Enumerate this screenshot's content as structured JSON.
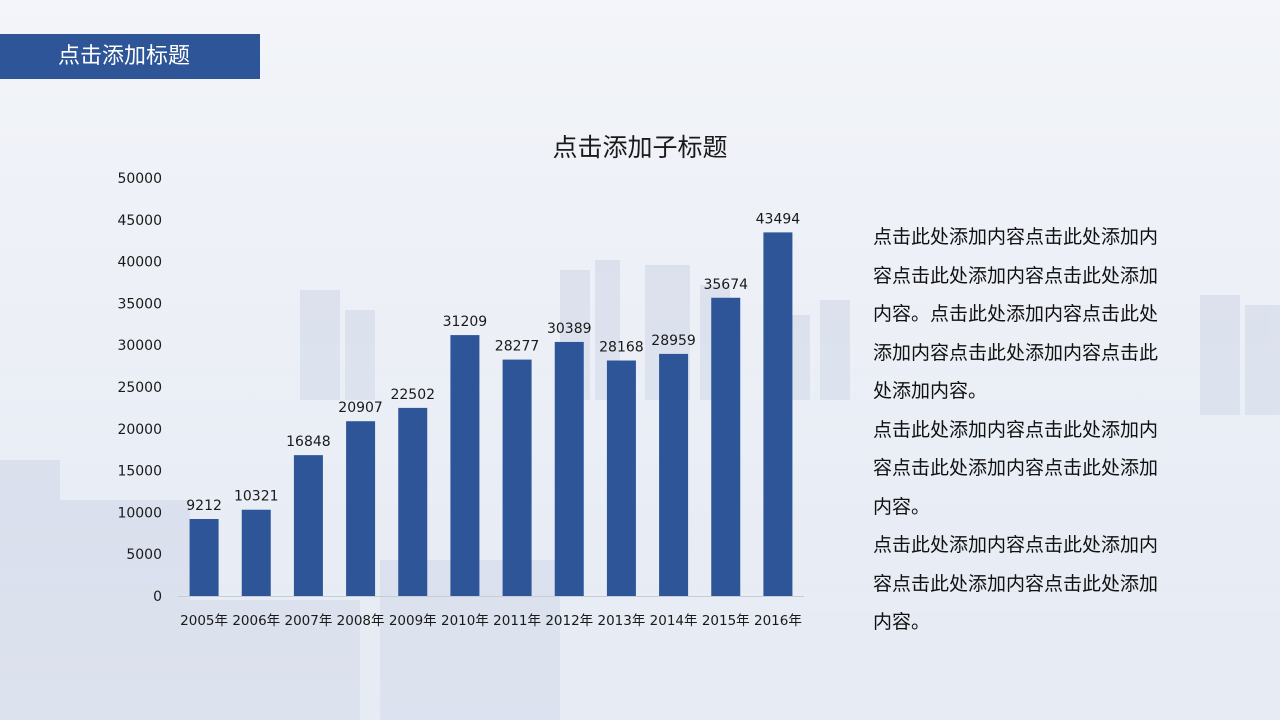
{
  "slide": {
    "title": "点击添加标题",
    "subtitle": "点击添加子标题",
    "paragraphs": [
      "点击此处添加内容点击此处添加内容点击此处添加内容点击此处添加内容。点击此处添加内容点击此处添加内容点击此处添加内容点击此处添加内容。",
      "点击此处添加内容点击此处添加内容点击此处添加内容点击此处添加内容。",
      "点击此处添加内容点击此处添加内容点击此处添加内容点击此处添加内容。"
    ]
  },
  "colors": {
    "bar": "#2d5597",
    "banner": "#2d5597",
    "axis": "#c8ccd4",
    "text": "#1a1a1a"
  },
  "chart_data": {
    "type": "bar",
    "categories": [
      "2005年",
      "2006年",
      "2007年",
      "2008年",
      "2009年",
      "2010年",
      "2011年",
      "2012年",
      "2013年",
      "2014年",
      "2015年",
      "2016年"
    ],
    "values": [
      9212,
      10321,
      16848,
      20907,
      22502,
      31209,
      28277,
      30389,
      28168,
      28959,
      35674,
      43494
    ],
    "yticks": [
      0,
      5000,
      10000,
      15000,
      20000,
      25000,
      30000,
      35000,
      40000,
      45000,
      50000
    ],
    "ylim": [
      0,
      50000
    ],
    "grid": false,
    "legend": "none",
    "data_labels": true
  }
}
